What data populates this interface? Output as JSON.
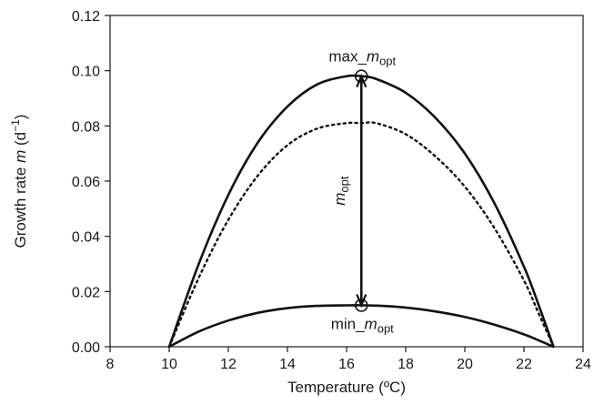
{
  "chart_data": {
    "type": "line",
    "xlabel": "Temperature (ºC)",
    "ylabel_prefix": "Growth rate ",
    "ylabel_var": "m",
    "ylabel_unit": " (d",
    "ylabel_exp": "−1",
    "ylabel_close": ")",
    "xlim": [
      8,
      24
    ],
    "ylim": [
      0,
      0.12
    ],
    "x_ticks": [
      "8",
      "10",
      "12",
      "14",
      "16",
      "18",
      "20",
      "22",
      "24"
    ],
    "y_ticks": [
      "0.00",
      "0.02",
      "0.04",
      "0.06",
      "0.08",
      "0.10",
      "0.12"
    ],
    "grid": false,
    "legend": "none",
    "series": [
      {
        "style": "solid",
        "x": [
          10,
          11,
          12,
          13,
          14,
          15,
          16,
          16.5,
          17,
          18,
          19,
          20,
          21,
          22,
          22.5,
          23
        ],
        "y": [
          0,
          0.03,
          0.055,
          0.074,
          0.087,
          0.095,
          0.098,
          0.098,
          0.097,
          0.092,
          0.083,
          0.07,
          0.052,
          0.029,
          0.015,
          0
        ]
      },
      {
        "style": "dotted",
        "x": [
          10,
          11,
          12,
          13,
          14,
          15,
          16,
          16.5,
          17,
          18,
          19,
          20,
          21,
          22,
          22.5,
          23
        ],
        "y": [
          0,
          0.025,
          0.046,
          0.062,
          0.073,
          0.079,
          0.081,
          0.081,
          0.081,
          0.077,
          0.069,
          0.058,
          0.043,
          0.024,
          0.012,
          0
        ]
      },
      {
        "style": "solid",
        "x": [
          10,
          11,
          12,
          13,
          14,
          15,
          16,
          16.5,
          17,
          18,
          19,
          20,
          21,
          22,
          22.5,
          23
        ],
        "y": [
          0,
          0.0055,
          0.0095,
          0.0123,
          0.014,
          0.0148,
          0.015,
          0.015,
          0.0149,
          0.0142,
          0.0128,
          0.0108,
          0.008,
          0.0045,
          0.0023,
          0
        ]
      }
    ],
    "markers": [
      {
        "x": 16.5,
        "y": 0.098,
        "shape": "open-circle"
      },
      {
        "x": 16.5,
        "y": 0.015,
        "shape": "open-circle"
      }
    ],
    "arrow": {
      "x": 16.5,
      "y_from": 0.015,
      "y_to": 0.098,
      "double_headed": true
    },
    "annotations": {
      "max": {
        "pre": "max_",
        "var": "m",
        "sub": "opt"
      },
      "min": {
        "pre": "min_",
        "var": "m",
        "sub": "opt"
      },
      "mid": {
        "var": "m",
        "sub": "opt"
      }
    }
  }
}
